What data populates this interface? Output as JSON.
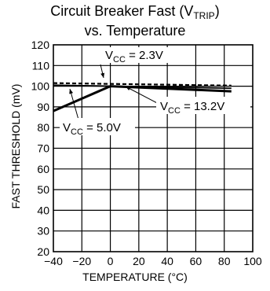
{
  "chart_data": {
    "type": "line",
    "title": {
      "line1_main": "Circuit Breaker Fast (V",
      "line1_sub": "TRIP",
      "line1_end": ")",
      "line2": "vs. Temperature"
    },
    "xlabel": "TEMPERATURE (°C)",
    "ylabel": "FAST THRESHOLD (mV)",
    "xlim": [
      -40,
      100
    ],
    "ylim": [
      20,
      120
    ],
    "xticks": [
      -40,
      -20,
      0,
      20,
      40,
      60,
      80,
      100
    ],
    "yticks": [
      20,
      30,
      40,
      50,
      60,
      70,
      80,
      90,
      100,
      110,
      120
    ],
    "grid": true,
    "series": [
      {
        "name_main": "V",
        "name_sub": "CC",
        "name_value": " = 2.3V",
        "style": "dashed",
        "x": [
          -40,
          85
        ],
        "y": [
          101.5,
          100.3
        ]
      },
      {
        "name_main": "V",
        "name_sub": "CC",
        "name_value": " = 13.2V",
        "style": "solid",
        "x": [
          -40,
          85
        ],
        "y": [
          100.5,
          99.0
        ]
      },
      {
        "name_main": "V",
        "name_sub": "CC",
        "name_value": " = 5.0V",
        "style": "solid-thick",
        "x": [
          -40,
          0,
          85
        ],
        "y": [
          88,
          100,
          97.5
        ]
      }
    ]
  }
}
